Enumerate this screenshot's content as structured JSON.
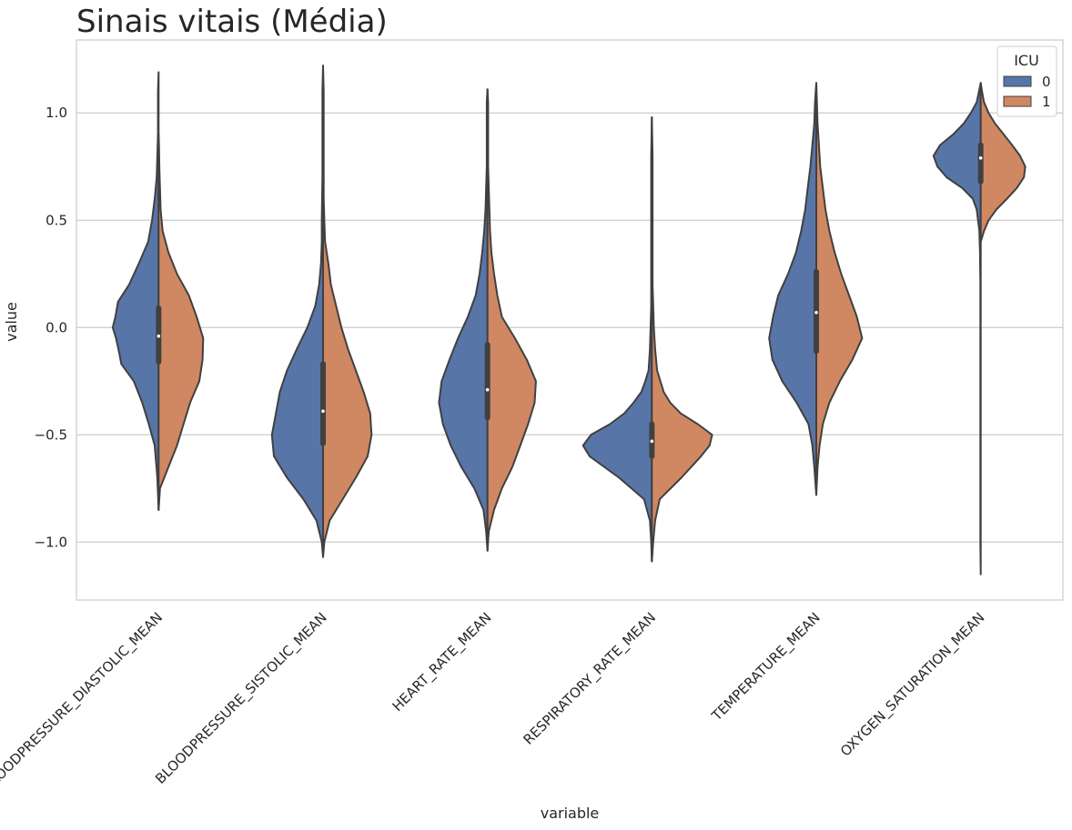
{
  "chart_data": {
    "type": "violin",
    "title": "Sinais vitais (Média)",
    "xlabel": "variable",
    "ylabel": "value",
    "ylim": [
      -1.27,
      1.34
    ],
    "yticks": [
      1.0,
      0.5,
      0.0,
      -0.5,
      -1.0
    ],
    "ytick_labels": [
      "1.0",
      "0.5",
      "0.0",
      "−0.5",
      "−1.0"
    ],
    "grid": "horizontal",
    "split": true,
    "legend": {
      "title": "ICU",
      "placement": "top-right",
      "entries": [
        "0",
        "1"
      ]
    },
    "colors": {
      "0": "#5875a8",
      "1": "#cf8862",
      "edge": "#404040",
      "grid": "#cccccc",
      "frame": "#cccccc"
    },
    "categories": [
      "BLOODPRESSURE_DIASTOLIC_MEAN",
      "BLOODPRESSURE_SISTOLIC_MEAN",
      "HEART_RATE_MEAN",
      "RESPIRATORY_RATE_MEAN",
      "TEMPERATURE_MEAN",
      "OXYGEN_SATURATION_MEAN"
    ],
    "series": [
      {
        "name": "0",
        "violins": [
          {
            "y": [
              -0.85,
              -0.7,
              -0.55,
              -0.45,
              -0.35,
              -0.25,
              -0.17,
              -0.12,
              -0.05,
              0.0,
              0.05,
              0.12,
              0.2,
              0.3,
              0.4,
              0.5,
              0.6,
              0.7,
              0.8,
              0.9,
              1.0,
              1.1,
              1.19
            ],
            "density": [
              0.0,
              0.02,
              0.06,
              0.15,
              0.25,
              0.38,
              0.57,
              0.6,
              0.65,
              0.7,
              0.66,
              0.62,
              0.45,
              0.3,
              0.16,
              0.1,
              0.06,
              0.03,
              0.02,
              0.01,
              0.01,
              0.01,
              0.0
            ]
          },
          {
            "y": [
              -1.07,
              -1.0,
              -0.9,
              -0.8,
              -0.7,
              -0.6,
              -0.5,
              -0.4,
              -0.3,
              -0.2,
              -0.1,
              0.0,
              0.1,
              0.2,
              0.3,
              0.4,
              0.5,
              0.7,
              0.9,
              1.0,
              1.1,
              1.22
            ],
            "density": [
              0.0,
              0.02,
              0.1,
              0.3,
              0.55,
              0.75,
              0.78,
              0.72,
              0.66,
              0.55,
              0.4,
              0.24,
              0.12,
              0.06,
              0.03,
              0.02,
              0.02,
              0.01,
              0.01,
              0.01,
              0.01,
              0.0
            ]
          },
          {
            "y": [
              -1.04,
              -0.95,
              -0.85,
              -0.75,
              -0.65,
              -0.55,
              -0.45,
              -0.35,
              -0.25,
              -0.15,
              -0.05,
              0.05,
              0.15,
              0.25,
              0.35,
              0.45,
              0.55,
              0.65,
              0.75,
              0.85,
              0.95,
              1.05,
              1.11
            ],
            "density": [
              0.0,
              0.02,
              0.06,
              0.2,
              0.4,
              0.56,
              0.68,
              0.74,
              0.7,
              0.58,
              0.45,
              0.3,
              0.18,
              0.12,
              0.08,
              0.05,
              0.03,
              0.02,
              0.01,
              0.01,
              0.01,
              0.01,
              0.0
            ]
          },
          {
            "y": [
              -1.09,
              -1.0,
              -0.9,
              -0.8,
              -0.7,
              -0.6,
              -0.55,
              -0.5,
              -0.45,
              -0.4,
              -0.35,
              -0.3,
              -0.25,
              -0.2,
              -0.1,
              0.0,
              0.1,
              0.2,
              0.4,
              0.6,
              0.8,
              0.98
            ],
            "density": [
              0.0,
              0.01,
              0.03,
              0.12,
              0.5,
              0.95,
              1.05,
              0.93,
              0.64,
              0.42,
              0.28,
              0.16,
              0.1,
              0.05,
              0.03,
              0.02,
              0.01,
              0.01,
              0.01,
              0.01,
              0.01,
              0.0
            ]
          },
          {
            "y": [
              -0.78,
              -0.65,
              -0.55,
              -0.45,
              -0.35,
              -0.25,
              -0.15,
              -0.05,
              0.05,
              0.15,
              0.25,
              0.35,
              0.45,
              0.55,
              0.65,
              0.75,
              0.85,
              0.95,
              1.05,
              1.14
            ],
            "density": [
              0.0,
              0.03,
              0.06,
              0.12,
              0.3,
              0.52,
              0.67,
              0.72,
              0.66,
              0.58,
              0.43,
              0.31,
              0.23,
              0.17,
              0.13,
              0.09,
              0.06,
              0.03,
              0.02,
              0.0
            ]
          },
          {
            "y": [
              -1.15,
              -1.0,
              -0.8,
              -0.6,
              -0.4,
              -0.2,
              0.0,
              0.2,
              0.35,
              0.45,
              0.55,
              0.6,
              0.65,
              0.7,
              0.75,
              0.8,
              0.85,
              0.9,
              0.95,
              1.0,
              1.05,
              1.14
            ],
            "density": [
              0.0,
              0.005,
              0.005,
              0.005,
              0.005,
              0.005,
              0.005,
              0.005,
              0.01,
              0.02,
              0.06,
              0.12,
              0.28,
              0.52,
              0.66,
              0.72,
              0.62,
              0.42,
              0.26,
              0.15,
              0.06,
              0.0
            ]
          }
        ]
      },
      {
        "name": "1",
        "violins": [
          {
            "y": [
              -0.85,
              -0.75,
              -0.65,
              -0.55,
              -0.45,
              -0.35,
              -0.25,
              -0.15,
              -0.05,
              0.05,
              0.15,
              0.25,
              0.35,
              0.45,
              0.55,
              0.65,
              0.75,
              0.85,
              0.9
            ],
            "density": [
              0.0,
              0.02,
              0.15,
              0.28,
              0.38,
              0.48,
              0.62,
              0.67,
              0.68,
              0.58,
              0.46,
              0.28,
              0.15,
              0.06,
              0.03,
              0.02,
              0.01,
              0.005,
              0.0
            ]
          },
          {
            "y": [
              -1.07,
              -1.0,
              -0.9,
              -0.8,
              -0.7,
              -0.6,
              -0.5,
              -0.4,
              -0.3,
              -0.2,
              -0.1,
              0.0,
              0.1,
              0.2,
              0.3,
              0.4,
              0.5,
              0.6,
              0.8,
              1.0,
              1.1,
              1.22
            ],
            "density": [
              0.0,
              0.02,
              0.1,
              0.3,
              0.5,
              0.68,
              0.74,
              0.72,
              0.62,
              0.5,
              0.38,
              0.28,
              0.2,
              0.12,
              0.08,
              0.03,
              0.02,
              0.01,
              0.01,
              0.01,
              0.01,
              0.0
            ]
          },
          {
            "y": [
              -1.04,
              -0.95,
              -0.85,
              -0.75,
              -0.65,
              -0.55,
              -0.45,
              -0.35,
              -0.25,
              -0.15,
              -0.05,
              0.05,
              0.15,
              0.25,
              0.35,
              0.45,
              0.55,
              0.65,
              0.75,
              0.85,
              0.95,
              1.05,
              1.11
            ],
            "density": [
              0.0,
              0.02,
              0.1,
              0.22,
              0.38,
              0.5,
              0.62,
              0.72,
              0.74,
              0.6,
              0.42,
              0.22,
              0.15,
              0.1,
              0.06,
              0.04,
              0.03,
              0.02,
              0.01,
              0.01,
              0.01,
              0.01,
              0.0
            ]
          },
          {
            "y": [
              -1.09,
              -1.0,
              -0.9,
              -0.8,
              -0.7,
              -0.6,
              -0.55,
              -0.5,
              -0.45,
              -0.4,
              -0.35,
              -0.3,
              -0.2,
              -0.1,
              0.0,
              0.1,
              0.2,
              0.4,
              0.6,
              0.8,
              0.98
            ],
            "density": [
              0.0,
              0.02,
              0.05,
              0.12,
              0.45,
              0.75,
              0.88,
              0.92,
              0.7,
              0.44,
              0.28,
              0.18,
              0.08,
              0.05,
              0.03,
              0.02,
              0.01,
              0.01,
              0.01,
              0.01,
              0.0
            ]
          },
          {
            "y": [
              -0.78,
              -0.65,
              -0.55,
              -0.45,
              -0.35,
              -0.25,
              -0.15,
              -0.05,
              0.05,
              0.15,
              0.25,
              0.35,
              0.45,
              0.55,
              0.65,
              0.75,
              0.85,
              0.95,
              1.05,
              1.14
            ],
            "density": [
              0.0,
              0.02,
              0.05,
              0.1,
              0.2,
              0.36,
              0.55,
              0.7,
              0.62,
              0.5,
              0.38,
              0.28,
              0.2,
              0.14,
              0.1,
              0.06,
              0.04,
              0.02,
              0.01,
              0.0
            ]
          },
          {
            "y": [
              0.4,
              0.45,
              0.5,
              0.55,
              0.6,
              0.65,
              0.7,
              0.75,
              0.8,
              0.85,
              0.9,
              0.95,
              1.0,
              1.05,
              1.1,
              1.14
            ],
            "density": [
              0.0,
              0.05,
              0.12,
              0.24,
              0.4,
              0.55,
              0.66,
              0.68,
              0.6,
              0.48,
              0.35,
              0.22,
              0.12,
              0.05,
              0.02,
              0.0
            ]
          }
        ]
      }
    ],
    "box": [
      {
        "q1": -0.16,
        "median": -0.04,
        "q3": 0.09
      },
      {
        "q1": -0.54,
        "median": -0.39,
        "q3": -0.17
      },
      {
        "q1": -0.42,
        "median": -0.29,
        "q3": -0.08
      },
      {
        "q1": -0.6,
        "median": -0.53,
        "q3": -0.45
      },
      {
        "q1": -0.11,
        "median": 0.07,
        "q3": 0.26
      },
      {
        "q1": 0.68,
        "median": 0.79,
        "q3": 0.85
      }
    ]
  }
}
